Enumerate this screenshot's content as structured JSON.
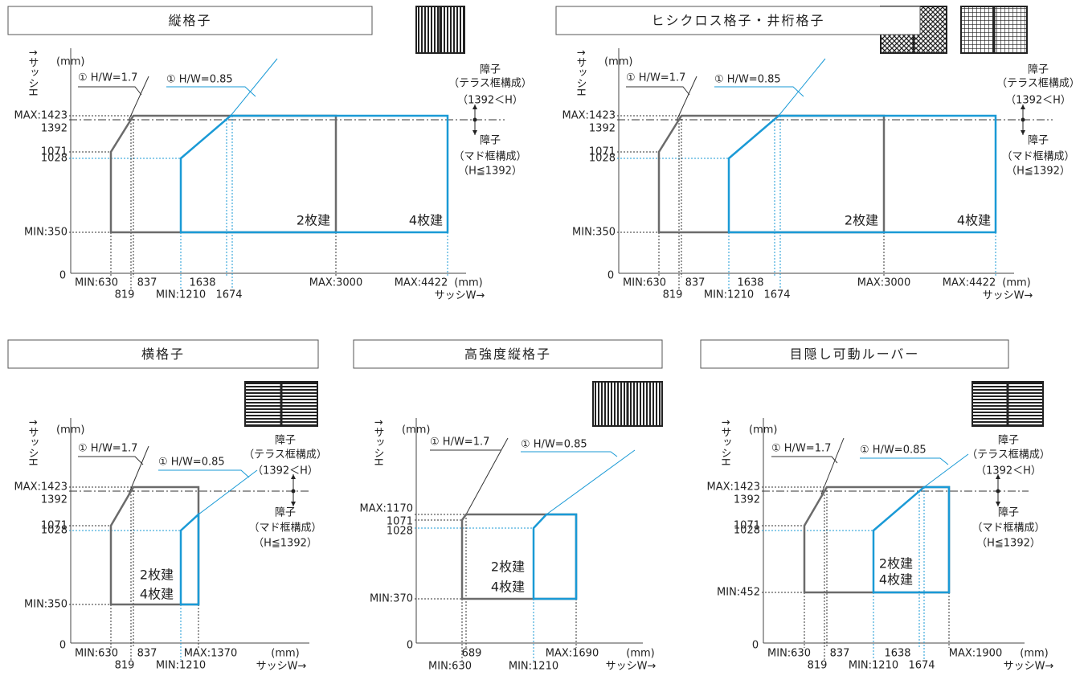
{
  "panels": [
    {
      "title": "縦格子",
      "y_axis": "↑サッシH",
      "y_unit": "(mm)",
      "origin": "0",
      "x_unit": "(mm)",
      "x_axis": "サッシW→",
      "ratio_labels": [
        "① H/W=1.7",
        "① H/W=0.85"
      ],
      "y_labels": [
        "MAX:1423",
        "1392",
        "1071",
        "1028",
        "MIN:350"
      ],
      "x_labels": [
        "MIN:630",
        "819",
        "837",
        "MIN:1210",
        "1638",
        "1674",
        "MAX:3000",
        "MAX:4422"
      ],
      "region_labels": [
        "2枚建",
        "4枚建"
      ],
      "notes": [
        "障子",
        "（テラス框構成）",
        "（1392＜H）",
        "障子",
        "（マド框構成）",
        "（H≦1392）"
      ]
    },
    {
      "title": "ヒシクロス格子・井桁格子",
      "y_axis": "↑サッシH",
      "y_unit": "(mm)",
      "origin": "0",
      "x_unit": "(mm)",
      "x_axis": "サッシW→",
      "ratio_labels": [
        "① H/W=1.7",
        "① H/W=0.85"
      ],
      "y_labels": [
        "MAX:1423",
        "1392",
        "1071",
        "1028",
        "MIN:350"
      ],
      "x_labels": [
        "MIN:630",
        "819",
        "837",
        "MIN:1210",
        "1638",
        "1674",
        "MAX:3000",
        "MAX:4422"
      ],
      "region_labels": [
        "2枚建",
        "4枚建"
      ],
      "notes": [
        "障子",
        "（テラス框構成）",
        "（1392＜H）",
        "障子",
        "（マド框構成）",
        "（H≦1392）"
      ]
    },
    {
      "title": "横格子",
      "y_axis": "↑サッシH",
      "y_unit": "(mm)",
      "origin": "0",
      "x_unit": "(mm)",
      "x_axis": "サッシW→",
      "ratio_labels": [
        "① H/W=1.7",
        "① H/W=0.85"
      ],
      "y_labels": [
        "MAX:1423",
        "1392",
        "1071",
        "1028",
        "MIN:350"
      ],
      "x_labels": [
        "MIN:630",
        "819",
        "837",
        "MIN:1210",
        "MAX:1370"
      ],
      "region_labels": [
        "2枚建",
        "4枚建"
      ],
      "notes": [
        "障子",
        "（テラス框構成）",
        "（1392＜H）",
        "障子",
        "（マド框構成）",
        "（H≦1392）"
      ]
    },
    {
      "title": "高強度縦格子",
      "y_axis": "↑サッシH",
      "y_unit": "(mm)",
      "origin": "0",
      "x_unit": "(mm)",
      "x_axis": "サッシW→",
      "ratio_labels": [
        "① H/W=1.7",
        "① H/W=0.85"
      ],
      "y_labels": [
        "MAX:1170",
        "1071",
        "1028",
        "MIN:370"
      ],
      "x_labels": [
        "MIN:630",
        "689",
        "MIN:1210",
        "MAX:1690"
      ],
      "region_labels": [
        "2枚建",
        "4枚建"
      ]
    },
    {
      "title": "目隠し可動ルーバー",
      "y_axis": "↑サッシH",
      "y_unit": "(mm)",
      "origin": "0",
      "x_unit": "(mm)",
      "x_axis": "サッシW→",
      "ratio_labels": [
        "① H/W=1.7",
        "① H/W=0.85"
      ],
      "y_labels": [
        "MAX:1423",
        "1392",
        "1071",
        "1028",
        "MIN:452"
      ],
      "x_labels": [
        "MIN:630",
        "819",
        "837",
        "MIN:1210",
        "1638",
        "1674",
        "MAX:1900"
      ],
      "region_labels": [
        "2枚建",
        "4枚建"
      ],
      "notes": [
        "障子",
        "（テラス框構成）",
        "（1392＜H）",
        "障子",
        "（マド框構成）",
        "（H≦1392）"
      ]
    }
  ]
}
